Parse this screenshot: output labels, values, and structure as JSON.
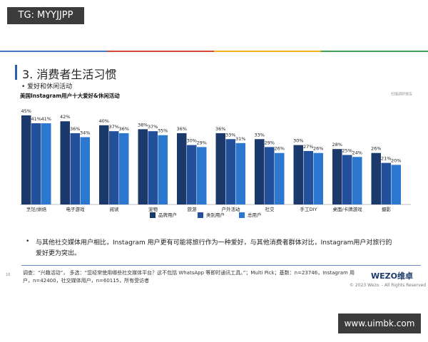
{
  "watermark_top": "TG: MYYJJPP",
  "header": {
    "title": "3. 消费者生活习惯"
  },
  "bullet": "爱好和休闲活动",
  "chart_data": {
    "type": "bar",
    "title": "美国Instagram用户十大爱好&休闲活动",
    "annotation": "扫描调研报告",
    "categories": [
      "烹饪/烘焙",
      "电子游戏",
      "阅读",
      "宠物",
      "旅游",
      "户外活动",
      "社交",
      "手工DIY",
      "桌面/卡牌游戏",
      "摄影"
    ],
    "series": [
      {
        "name": "品牌用户",
        "color": "#1b3a6b",
        "values": [
          45,
          42,
          40,
          38,
          36,
          36,
          33,
          30,
          28,
          26
        ],
        "value_labels": [
          "45%",
          "42%",
          "40%",
          "38%",
          "36%",
          "36%",
          "33%",
          "30%",
          "28%",
          "26%"
        ]
      },
      {
        "name": "类别用户",
        "color": "#23509a",
        "values": [
          41,
          36,
          37,
          37,
          30,
          33,
          29,
          27,
          25,
          21
        ],
        "value_labels": [
          "41%",
          "36%",
          "37%",
          "37%",
          "30%",
          "33%",
          "29%",
          "27%",
          "25%",
          "21%"
        ]
      },
      {
        "name": "总用户",
        "color": "#2c77cf",
        "values": [
          41,
          34,
          36,
          35,
          29,
          31,
          26,
          26,
          24,
          20
        ],
        "value_labels": [
          "41%",
          "34%",
          "36%",
          "35%",
          "29%",
          "31%",
          "26%",
          "26%",
          "24%",
          "20%"
        ]
      }
    ]
  },
  "paragraph": "与其他社交媒体用户相比，Instagram 用户更有可能将旅行作为一种爱好，与其他消费者群体对比，Instagram用户对旅行的爱好更为突出。",
  "footnote": "调查：“兴趣活动”， 多选：“您经常使用哪些社交媒体平台？这不包括 WhatsApp 等即时通讯工具。”；Multi Pick；基数：n=23746，Instagram 用户，n=42400，社交媒体用户，n=60115，所有受访者",
  "page_number": "16",
  "logo": "WEZO维卓",
  "copyright": "© 2023 Wezo. - All Rights Reserved",
  "watermark_bottom": "www.uimbk.com"
}
